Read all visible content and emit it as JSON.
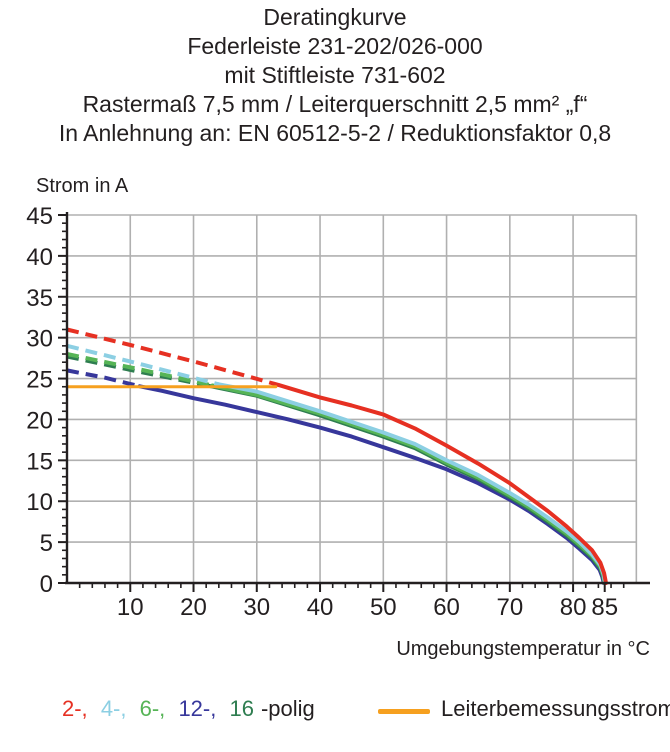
{
  "title_lines": [
    "Deratingkurve",
    "Federleiste 231-202/026-000",
    "mit Stiftleiste 731-602",
    "Rastermaß 7,5 mm / Leiterquerschnitt 2,5 mm² „f“",
    "In Anlehnung an: EN 60512-5-2 / Reduktionsfaktor 0,8"
  ],
  "chart_data": {
    "type": "line",
    "title": "Deratingkurve Federleiste 231-202/026-000 mit Stiftleiste 731-602",
    "xlabel": "Umgebungstemperatur in °C",
    "ylabel": "Strom in A",
    "xlim": [
      0,
      92
    ],
    "ylim": [
      0,
      45
    ],
    "grid": true,
    "grid_color": "#b0b0b0",
    "axis_color": "#231f20",
    "grid_x": [
      10,
      20,
      30,
      40,
      50,
      60,
      70,
      80,
      90
    ],
    "grid_y": [
      5,
      10,
      15,
      20,
      25,
      30,
      35,
      40,
      45
    ],
    "grid_right_limit": 90,
    "xticks": [
      {
        "v": 10,
        "label": "10"
      },
      {
        "v": 20,
        "label": "20"
      },
      {
        "v": 30,
        "label": "30"
      },
      {
        "v": 40,
        "label": "40"
      },
      {
        "v": 50,
        "label": "50"
      },
      {
        "v": 60,
        "label": "60"
      },
      {
        "v": 70,
        "label": "70"
      },
      {
        "v": 80,
        "label": "80"
      },
      {
        "v": 85,
        "label": "85"
      }
    ],
    "yticks": [
      {
        "v": 0,
        "label": "0"
      },
      {
        "v": 5,
        "label": "5"
      },
      {
        "v": 10,
        "label": "10"
      },
      {
        "v": 15,
        "label": "15"
      },
      {
        "v": 20,
        "label": "20"
      },
      {
        "v": 25,
        "label": "25"
      },
      {
        "v": 30,
        "label": "30"
      },
      {
        "v": 35,
        "label": "35"
      },
      {
        "v": 40,
        "label": "40"
      },
      {
        "v": 45,
        "label": "45"
      }
    ],
    "minor_x_step": 2,
    "minor_y_step": 1,
    "series": [
      {
        "name": "12-polig",
        "color": "#37379b",
        "width": 4,
        "dashed": [
          [
            0,
            26
          ],
          [
            6,
            25.1
          ],
          [
            11.5,
            24.05
          ]
        ],
        "solid": [
          [
            11.5,
            24.05
          ],
          [
            15,
            23.5
          ],
          [
            20,
            22.6
          ],
          [
            25,
            21.8
          ],
          [
            30,
            20.9
          ],
          [
            35,
            20.0
          ],
          [
            40,
            19.0
          ],
          [
            45,
            17.9
          ],
          [
            50,
            16.6
          ],
          [
            55,
            15.3
          ],
          [
            60,
            13.9
          ],
          [
            65,
            12.2
          ],
          [
            70,
            10.2
          ],
          [
            73,
            8.8
          ],
          [
            76,
            7.2
          ],
          [
            79,
            5.5
          ],
          [
            81,
            4.2
          ],
          [
            83,
            2.8
          ],
          [
            84.2,
            1.6
          ],
          [
            84.6,
            0.8
          ],
          [
            84.85,
            0
          ]
        ]
      },
      {
        "name": "16-polig",
        "color": "#2e7d50",
        "width": 4,
        "dashed": [
          [
            0,
            27.7
          ],
          [
            11,
            25.9
          ],
          [
            22.5,
            24.1
          ]
        ],
        "solid": [
          [
            22.5,
            24.1
          ],
          [
            30,
            22.9
          ],
          [
            40,
            20.5
          ],
          [
            50,
            17.9
          ],
          [
            55,
            16.5
          ],
          [
            60,
            14.5
          ],
          [
            65,
            12.7
          ],
          [
            70,
            10.5
          ],
          [
            73,
            9.1
          ],
          [
            76,
            7.5
          ],
          [
            79,
            5.8
          ],
          [
            81,
            4.5
          ],
          [
            83,
            3.1
          ],
          [
            84.3,
            1.8
          ],
          [
            84.7,
            0.9
          ],
          [
            84.95,
            0
          ]
        ]
      },
      {
        "name": "6-polig",
        "color": "#56b456",
        "width": 4,
        "dashed": [
          [
            0,
            28
          ],
          [
            11,
            26.2
          ],
          [
            23,
            24.15
          ]
        ],
        "solid": [
          [
            23,
            24.15
          ],
          [
            30,
            23.0
          ],
          [
            40,
            20.7
          ],
          [
            50,
            18.1
          ],
          [
            55,
            16.7
          ],
          [
            60,
            14.7
          ],
          [
            65,
            12.9
          ],
          [
            70,
            10.7
          ],
          [
            73,
            9.3
          ],
          [
            76,
            7.7
          ],
          [
            79,
            6.0
          ],
          [
            81,
            4.7
          ],
          [
            83,
            3.3
          ],
          [
            84.3,
            2.0
          ],
          [
            84.75,
            1.0
          ],
          [
            85,
            0
          ]
        ]
      },
      {
        "name": "4-polig",
        "color": "#8ccfe3",
        "width": 4,
        "dashed": [
          [
            0,
            29
          ],
          [
            12,
            26.7
          ],
          [
            24,
            24.3
          ]
        ],
        "solid": [
          [
            24,
            24.3
          ],
          [
            30,
            23.4
          ],
          [
            40,
            21.0
          ],
          [
            50,
            18.4
          ],
          [
            55,
            17.0
          ],
          [
            60,
            15.0
          ],
          [
            65,
            13.2
          ],
          [
            70,
            11.0
          ],
          [
            73,
            9.6
          ],
          [
            76,
            8.0
          ],
          [
            79,
            6.3
          ],
          [
            81,
            5.0
          ],
          [
            83,
            3.5
          ],
          [
            84.3,
            2.2
          ],
          [
            84.8,
            1.1
          ],
          [
            85.05,
            0
          ]
        ]
      },
      {
        "name": "2-polig",
        "color": "#e63022",
        "width": 4,
        "dashed": [
          [
            0,
            31
          ],
          [
            10,
            29.1
          ],
          [
            20,
            27.1
          ],
          [
            28,
            25.4
          ],
          [
            33.5,
            24.2
          ]
        ],
        "solid": [
          [
            33.5,
            24.2
          ],
          [
            40,
            22.7
          ],
          [
            45,
            21.7
          ],
          [
            50,
            20.6
          ],
          [
            55,
            18.9
          ],
          [
            60,
            16.8
          ],
          [
            65,
            14.6
          ],
          [
            70,
            12.2
          ],
          [
            73,
            10.5
          ],
          [
            76,
            8.8
          ],
          [
            79,
            6.9
          ],
          [
            81,
            5.5
          ],
          [
            83,
            4.0
          ],
          [
            84.3,
            2.5
          ],
          [
            84.9,
            1.2
          ],
          [
            85.2,
            0
          ]
        ]
      },
      {
        "name": "Leiterbemessungsstrom",
        "color": "#f6a01f",
        "width": 3,
        "solid": [
          [
            0,
            24
          ],
          [
            33,
            24
          ]
        ]
      }
    ]
  },
  "legend": {
    "poles": [
      {
        "label": "2-,",
        "color": "#e63022"
      },
      {
        "label": "4-,",
        "color": "#8ccfe3"
      },
      {
        "label": "6-,",
        "color": "#56b456"
      },
      {
        "label": "12-,",
        "color": "#37379b"
      },
      {
        "label": "16",
        "color": "#2e7d50"
      }
    ],
    "poles_suffix": "-polig",
    "rated": {
      "label": "Leiterbemessungsstrom",
      "color": "#f6a01f"
    }
  }
}
